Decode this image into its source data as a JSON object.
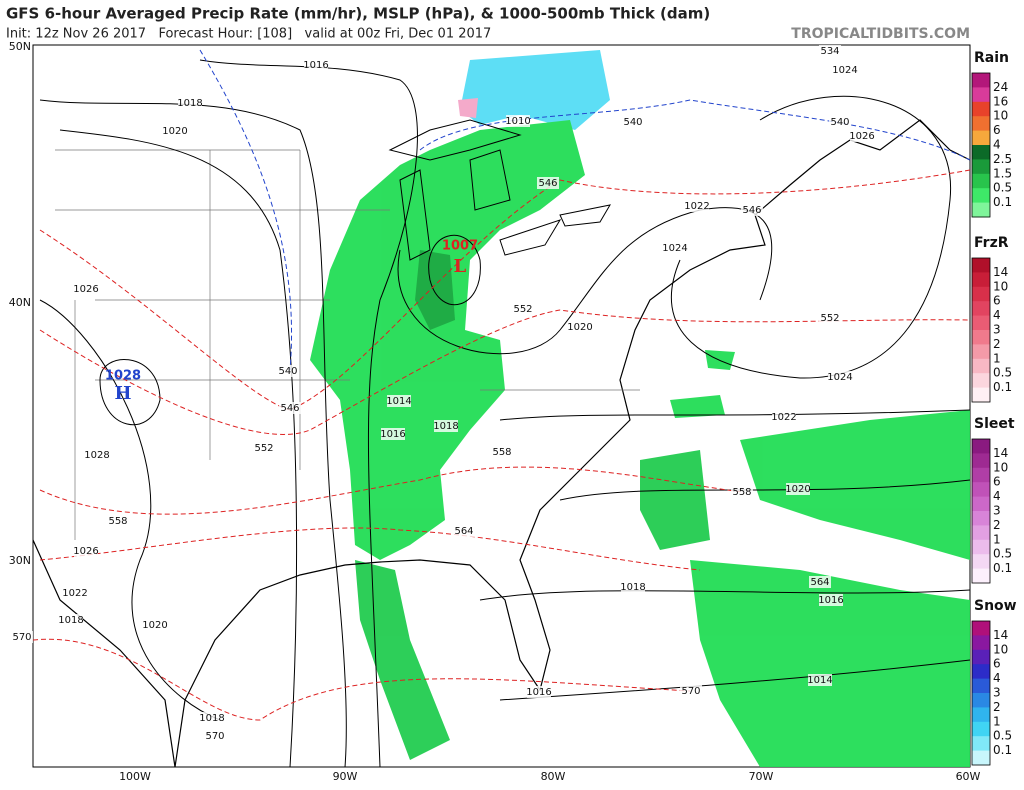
{
  "header": {
    "title": "GFS 6-hour Averaged Precip Rate (mm/hr), MSLP (hPa), & 1000-500mb Thick (dam)",
    "subtitle": "Init: 12z Nov 26 2017   Forecast Hour: [108]   valid at 00z Fri, Dec 01 2017",
    "site": "TROPICALTIDBITS.COM"
  },
  "map": {
    "lat_labels": [
      "50N",
      "40N",
      "30N"
    ],
    "lon_labels": [
      "100W",
      "90W",
      "80W",
      "70W",
      "60W"
    ],
    "centers": [
      {
        "symbol": "H",
        "value": "1028"
      },
      {
        "symbol": "L",
        "value": "1007"
      }
    ],
    "isobar_labels": [
      "1016",
      "1018",
      "1020",
      "1010",
      "1024",
      "1026",
      "1022",
      "1024",
      "1020",
      "1024",
      "1022",
      "1026",
      "1028",
      "1014",
      "1016",
      "1018",
      "1020",
      "1026",
      "1022",
      "1018",
      "1020",
      "1018",
      "1016",
      "1014",
      "1016",
      "1018"
    ],
    "thickness_labels": [
      "534",
      "540",
      "540",
      "540",
      "546",
      "546",
      "552",
      "552",
      "546",
      "552",
      "558",
      "558",
      "558",
      "564",
      "564",
      "570",
      "570",
      "570"
    ]
  },
  "legends": [
    {
      "title": "Rain",
      "labels": [
        "24",
        "16",
        "10",
        "6",
        "4",
        "2.5",
        "1.5",
        "0.5",
        "0.1"
      ]
    },
    {
      "title": "FrzR",
      "labels": [
        "14",
        "10",
        "6",
        "4",
        "3",
        "2",
        "1",
        "0.5",
        "0.1"
      ]
    },
    {
      "title": "Sleet",
      "labels": [
        "14",
        "10",
        "6",
        "4",
        "3",
        "2",
        "1",
        "0.5",
        "0.1"
      ]
    },
    {
      "title": "Snow",
      "labels": [
        "14",
        "10",
        "6",
        "4",
        "3",
        "2",
        "1",
        "0.5",
        "0.1"
      ]
    }
  ]
}
